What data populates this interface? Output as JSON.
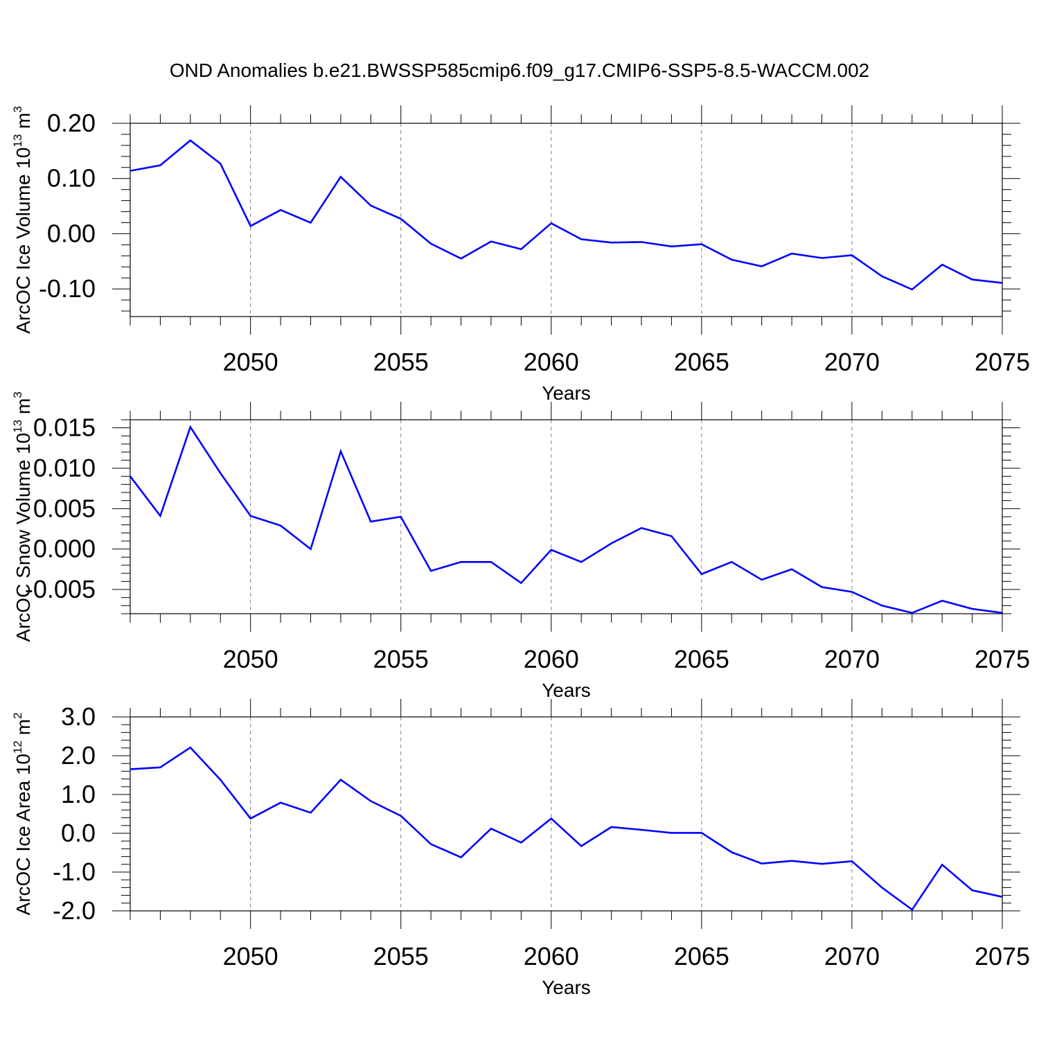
{
  "title": "OND Anomalies b.e21.BWSSP585cmip6.f09_g17.CMIP6-SSP5-8.5-WACCM.002",
  "colors": {
    "line": "#0000ff",
    "axis": "#000000",
    "grid": "#7f7f7f"
  },
  "chart_data": [
    {
      "type": "line",
      "xlabel": "Years",
      "ylabel": {
        "prefix": "ArcOC Ice Volume 10",
        "exponent": "13",
        "unit": " m",
        "unit_exponent": "3"
      },
      "xlim": [
        2046,
        2075
      ],
      "ylim": [
        -0.15,
        0.2
      ],
      "xticks": [
        "2050",
        "2055",
        "2060",
        "2065",
        "2070",
        "2075"
      ],
      "yticks": [
        "0.20",
        "0.10",
        "0.00",
        "-0.10"
      ],
      "x": [
        2046,
        2047,
        2048,
        2049,
        2050,
        2051,
        2052,
        2053,
        2054,
        2055,
        2056,
        2057,
        2058,
        2059,
        2060,
        2061,
        2062,
        2063,
        2064,
        2065,
        2066,
        2067,
        2068,
        2069,
        2070,
        2071,
        2072,
        2073,
        2074,
        2075
      ],
      "y": [
        0.114,
        0.124,
        0.169,
        0.127,
        0.014,
        0.043,
        0.02,
        0.103,
        0.051,
        0.027,
        -0.018,
        -0.045,
        -0.014,
        -0.028,
        0.019,
        -0.01,
        -0.016,
        -0.015,
        -0.023,
        -0.019,
        -0.047,
        -0.059,
        -0.036,
        -0.044,
        -0.039,
        -0.077,
        -0.101,
        -0.056,
        -0.083,
        -0.089
      ]
    },
    {
      "type": "line",
      "xlabel": "Years",
      "ylabel": {
        "prefix": "ArcOC Snow Volume 10",
        "exponent": "13",
        "unit": " m",
        "unit_exponent": "3"
      },
      "xlim": [
        2046,
        2075
      ],
      "ylim": [
        -0.008,
        0.016
      ],
      "xticks": [
        "2050",
        "2055",
        "2060",
        "2065",
        "2070",
        "2075"
      ],
      "yticks": [
        "0.015",
        "0.010",
        "0.005",
        "0.000",
        "-0.005"
      ],
      "x": [
        2046,
        2047,
        2048,
        2049,
        2050,
        2051,
        2052,
        2053,
        2054,
        2055,
        2056,
        2057,
        2058,
        2059,
        2060,
        2061,
        2062,
        2063,
        2064,
        2065,
        2066,
        2067,
        2068,
        2069,
        2070,
        2071,
        2072,
        2073,
        2074,
        2075
      ],
      "y": [
        0.009,
        0.0041,
        0.0151,
        0.0094,
        0.0041,
        0.0029,
        0.0,
        0.0121,
        0.0034,
        0.004,
        -0.0027,
        -0.0016,
        -0.0016,
        -0.0042,
        -0.0001,
        -0.0016,
        0.0007,
        0.0026,
        0.0016,
        -0.0031,
        -0.0016,
        -0.0038,
        -0.0025,
        -0.0047,
        -0.0053,
        -0.007,
        -0.0079,
        -0.0064,
        -0.0074,
        -0.0079
      ]
    },
    {
      "type": "line",
      "xlabel": "Years",
      "ylabel": {
        "prefix": "ArcOC Ice Area 10",
        "exponent": "12",
        "unit": " m",
        "unit_exponent": "2"
      },
      "xlim": [
        2046,
        2075
      ],
      "ylim": [
        -2.0,
        3.0
      ],
      "xticks": [
        "2050",
        "2055",
        "2060",
        "2065",
        "2070",
        "2075"
      ],
      "yticks": [
        "3.0",
        "2.0",
        "1.0",
        "0.0",
        "-1.0",
        "-2.0"
      ],
      "x": [
        2046,
        2047,
        2048,
        2049,
        2050,
        2051,
        2052,
        2053,
        2054,
        2055,
        2056,
        2057,
        2058,
        2059,
        2060,
        2061,
        2062,
        2063,
        2064,
        2065,
        2066,
        2067,
        2068,
        2069,
        2070,
        2071,
        2072,
        2073,
        2074,
        2075
      ],
      "y": [
        1.65,
        1.7,
        2.21,
        1.38,
        0.38,
        0.79,
        0.53,
        1.38,
        0.83,
        0.45,
        -0.28,
        -0.62,
        0.12,
        -0.24,
        0.38,
        -0.33,
        0.16,
        0.09,
        0.01,
        0.01,
        -0.49,
        -0.78,
        -0.71,
        -0.79,
        -0.72,
        -1.4,
        -1.97,
        -0.81,
        -1.47,
        -1.64
      ]
    }
  ]
}
